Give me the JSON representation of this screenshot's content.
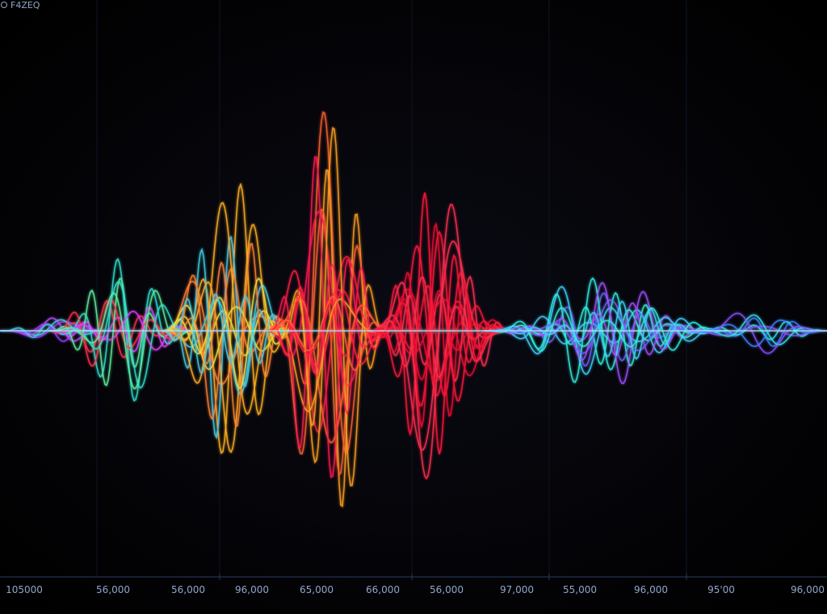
{
  "header": {
    "label": "F4ZEQ"
  },
  "axis": {
    "labels": [
      "105000",
      "56,000",
      "56,000",
      "96,000",
      "65,000",
      "66,000",
      "56,000",
      "97,000",
      "55,000",
      "96,000",
      "95'00",
      "96,000"
    ]
  }
}
